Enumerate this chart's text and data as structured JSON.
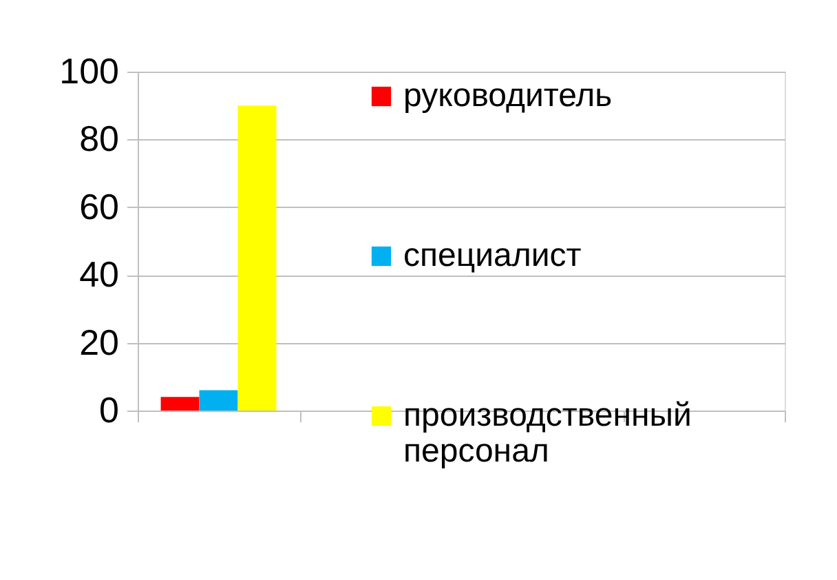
{
  "chart_data": {
    "type": "bar",
    "categories": [
      null,
      null,
      null,
      null
    ],
    "series": [
      {
        "name": "руководитель",
        "color": "#ff0000",
        "values": [
          4,
          null,
          null,
          null
        ]
      },
      {
        "name": "специалист",
        "color": "#00b0f0",
        "values": [
          6,
          null,
          null,
          null
        ]
      },
      {
        "name": "производственный персонал",
        "color": "#ffff00",
        "values": [
          90,
          null,
          null,
          null
        ]
      }
    ],
    "ylim": [
      0,
      100
    ],
    "yticks": [
      0,
      20,
      40,
      60,
      80,
      100
    ],
    "grid": "y",
    "legend": "right"
  }
}
